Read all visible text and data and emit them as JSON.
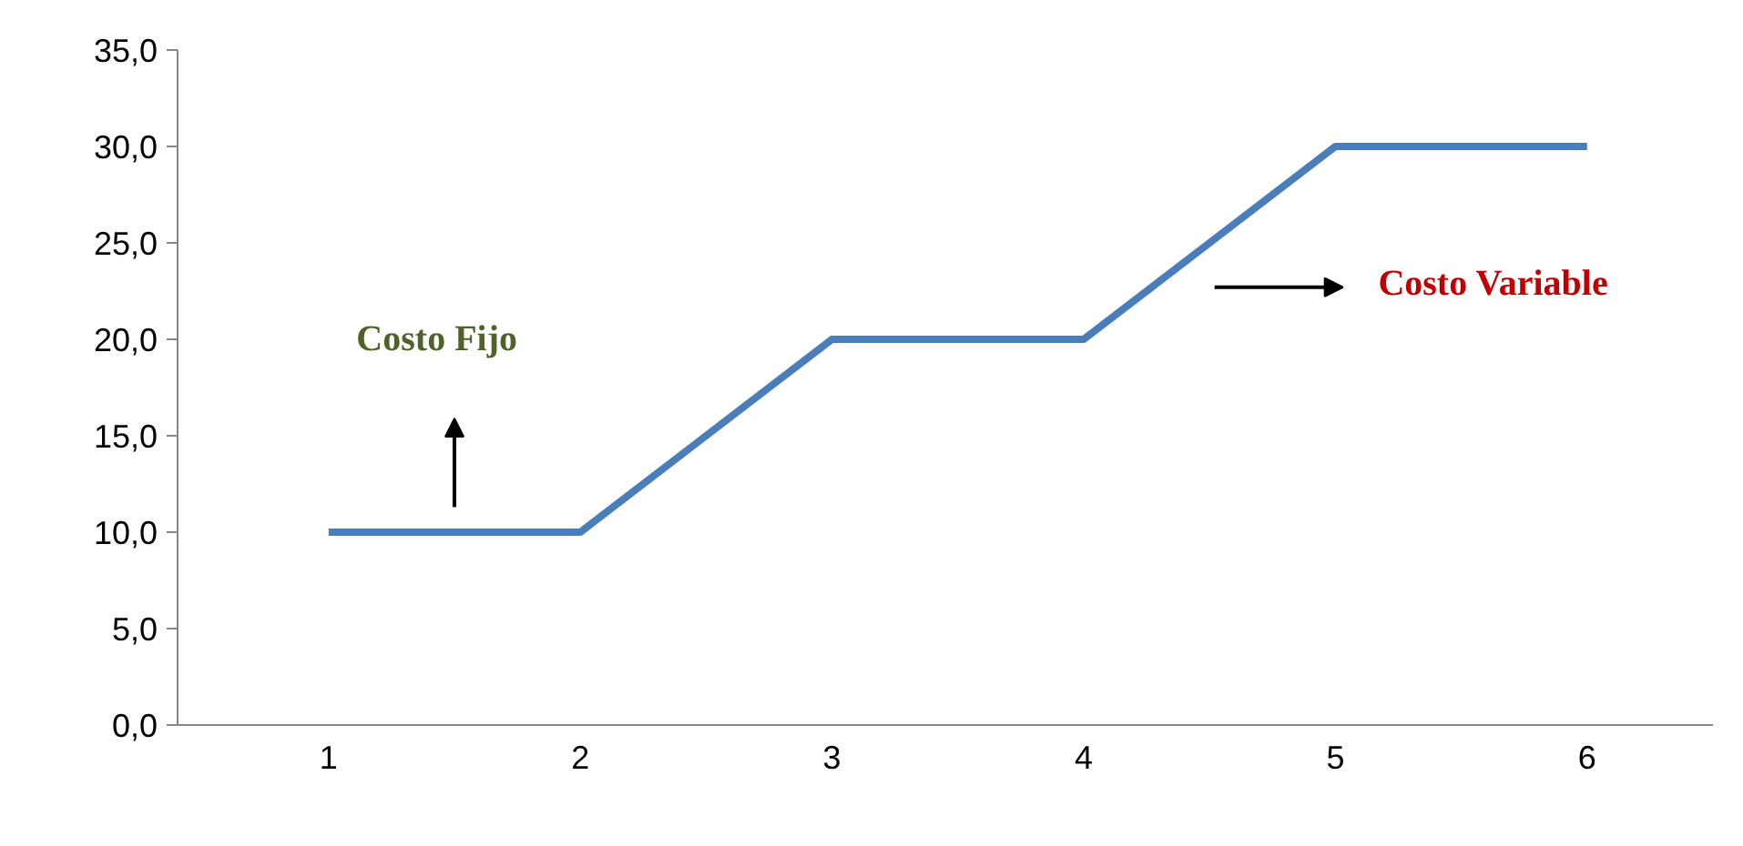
{
  "chart_data": {
    "type": "line",
    "categories": [
      "1",
      "2",
      "3",
      "4",
      "5",
      "6"
    ],
    "series": [
      {
        "color": "#4a7ebb",
        "values": [
          10,
          10,
          20,
          20,
          30,
          30
        ]
      }
    ],
    "ylim": [
      0,
      35
    ],
    "yticks": [
      {
        "value": 0,
        "label": "0,0"
      },
      {
        "value": 5,
        "label": "5,0"
      },
      {
        "value": 10,
        "label": "10,0"
      },
      {
        "value": 15,
        "label": "15,0"
      },
      {
        "value": 20,
        "label": "20,0"
      },
      {
        "value": 25,
        "label": "25,0"
      },
      {
        "value": 30,
        "label": "30,0"
      },
      {
        "value": 35,
        "label": "35,0"
      }
    ],
    "annotations": [
      "Costo Fijo",
      "Costo Variable"
    ],
    "grid": false,
    "marker": "none",
    "line_style": "solid"
  }
}
